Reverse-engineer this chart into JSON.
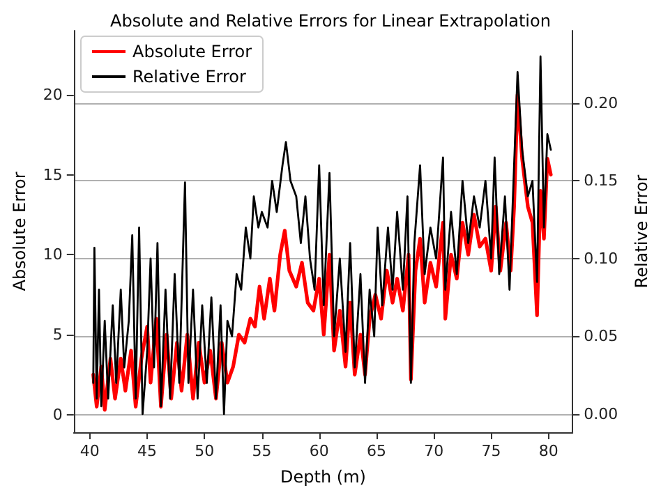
{
  "chart_data": {
    "type": "line",
    "title": "Absolute and Relative Errors for Linear Extrapolation",
    "xlabel": "Depth (m)",
    "ylabel": "Absolute Error",
    "y2label": "Relative Error",
    "xlim": [
      38.6,
      82.1
    ],
    "xticks": [
      40,
      45,
      50,
      55,
      60,
      65,
      70,
      75,
      80
    ],
    "ylim": [
      -1.1,
      24.0
    ],
    "yticks": [
      0,
      5,
      10,
      15,
      20
    ],
    "y2lim": [
      -0.0117,
      0.2466
    ],
    "y2ticks": [
      {
        "value": 0,
        "label": "0.00"
      },
      {
        "value": 0.05,
        "label": "0.05"
      },
      {
        "value": 0.1,
        "label": "0.10"
      },
      {
        "value": 0.15,
        "label": "0.15"
      },
      {
        "value": 0.2,
        "label": "0.20"
      }
    ],
    "grid": "y",
    "legend": "top left",
    "line_style": "solid",
    "marker": "none",
    "series": [
      {
        "name": "Absolute Error",
        "color": "#ff0000",
        "x": [
          40.3,
          40.6,
          41.0,
          41.3,
          41.8,
          42.2,
          42.7,
          43.1,
          43.6,
          44.0,
          44.5,
          45.0,
          45.3,
          45.8,
          46.2,
          46.7,
          47.1,
          47.6,
          48.0,
          48.5,
          49.0,
          49.5,
          50.0,
          50.5,
          51.0,
          51.5,
          52.0,
          52.5,
          53.0,
          53.5,
          54.0,
          54.4,
          54.8,
          55.2,
          55.7,
          56.1,
          56.6,
          57.0,
          57.4,
          58.0,
          58.5,
          59.0,
          59.5,
          60.0,
          60.4,
          60.9,
          61.3,
          61.8,
          62.3,
          62.7,
          63.1,
          63.6,
          64.0,
          64.4,
          64.9,
          65.4,
          65.9,
          66.4,
          66.8,
          67.3,
          67.8,
          68.0,
          68.4,
          68.8,
          69.2,
          69.7,
          70.2,
          70.8,
          71.0,
          71.5,
          72.0,
          72.5,
          73.0,
          73.5,
          74.0,
          74.5,
          75.0,
          75.4,
          75.8,
          76.3,
          76.7,
          77.0,
          77.3,
          77.7,
          78.2,
          78.6,
          79.0,
          79.3,
          79.6,
          79.9,
          80.2
        ],
        "values": [
          2.5,
          0.5,
          3,
          0.3,
          3.5,
          1.0,
          3.5,
          1.5,
          4,
          0.5,
          3.5,
          5.5,
          2,
          6,
          0.5,
          5,
          1,
          4.5,
          1.5,
          5,
          1,
          4.5,
          2,
          4,
          1,
          4.5,
          2,
          3,
          5,
          4.5,
          6,
          5.5,
          8,
          6,
          8.5,
          6.5,
          10,
          11.5,
          9,
          8,
          9.5,
          7,
          6.5,
          8.5,
          5,
          10,
          4,
          6.5,
          3,
          7,
          2.5,
          5,
          2.5,
          6,
          7.5,
          6,
          9,
          7,
          8.5,
          6.5,
          10,
          2.2,
          9,
          11,
          7,
          9.5,
          8,
          12,
          6,
          10,
          8.5,
          12,
          10,
          12.5,
          10.5,
          11,
          9,
          13,
          9,
          12,
          9,
          13,
          20,
          16,
          13,
          12,
          6.2,
          14,
          11,
          16,
          15
        ]
      },
      {
        "name": "Relative Error",
        "color": "#000000",
        "axis": "y2",
        "x": [
          40.3,
          40.4,
          40.6,
          40.8,
          41.0,
          41.3,
          41.6,
          42.0,
          42.3,
          42.7,
          43.0,
          43.4,
          43.7,
          44.0,
          44.3,
          44.6,
          45.0,
          45.3,
          45.6,
          45.9,
          46.2,
          46.6,
          47.0,
          47.4,
          47.8,
          48.3,
          48.6,
          49.0,
          49.4,
          49.8,
          50.2,
          50.6,
          51.0,
          51.4,
          51.7,
          52.0,
          52.4,
          52.8,
          53.2,
          53.6,
          54.0,
          54.3,
          54.7,
          55.0,
          55.5,
          55.9,
          56.3,
          56.8,
          57.1,
          57.5,
          58.0,
          58.4,
          58.8,
          59.2,
          59.6,
          60.0,
          60.4,
          60.9,
          61.3,
          61.8,
          62.3,
          62.7,
          63.1,
          63.6,
          64.0,
          64.4,
          64.8,
          65.1,
          65.5,
          66.0,
          66.4,
          66.8,
          67.3,
          67.7,
          68.0,
          68.3,
          68.8,
          69.2,
          69.7,
          70.2,
          70.8,
          71.0,
          71.5,
          72.0,
          72.5,
          73.0,
          73.5,
          74.0,
          74.5,
          75.0,
          75.3,
          75.7,
          76.2,
          76.6,
          77.0,
          77.3,
          77.7,
          78.2,
          78.6,
          79.0,
          79.3,
          79.6,
          79.9,
          80.2
        ],
        "values": [
          0.02,
          0.107,
          0.01,
          0.08,
          0.005,
          0.06,
          0.01,
          0.07,
          0.02,
          0.08,
          0.03,
          0.06,
          0.115,
          0.01,
          0.12,
          0.0,
          0.04,
          0.1,
          0.03,
          0.11,
          0.005,
          0.08,
          0.01,
          0.09,
          0.02,
          0.149,
          0.02,
          0.08,
          0.01,
          0.07,
          0.02,
          0.075,
          0.01,
          0.07,
          0.0,
          0.06,
          0.05,
          0.09,
          0.08,
          0.12,
          0.1,
          0.14,
          0.12,
          0.13,
          0.12,
          0.15,
          0.13,
          0.16,
          0.175,
          0.15,
          0.14,
          0.11,
          0.14,
          0.1,
          0.08,
          0.16,
          0.07,
          0.155,
          0.05,
          0.1,
          0.04,
          0.11,
          0.03,
          0.09,
          0.02,
          0.08,
          0.05,
          0.12,
          0.07,
          0.12,
          0.08,
          0.13,
          0.08,
          0.14,
          0.02,
          0.11,
          0.16,
          0.09,
          0.12,
          0.1,
          0.165,
          0.08,
          0.13,
          0.09,
          0.15,
          0.11,
          0.14,
          0.12,
          0.15,
          0.1,
          0.165,
          0.09,
          0.14,
          0.08,
          0.16,
          0.22,
          0.17,
          0.14,
          0.15,
          0.085,
          0.23,
          0.12,
          0.18,
          0.17
        ]
      }
    ]
  }
}
